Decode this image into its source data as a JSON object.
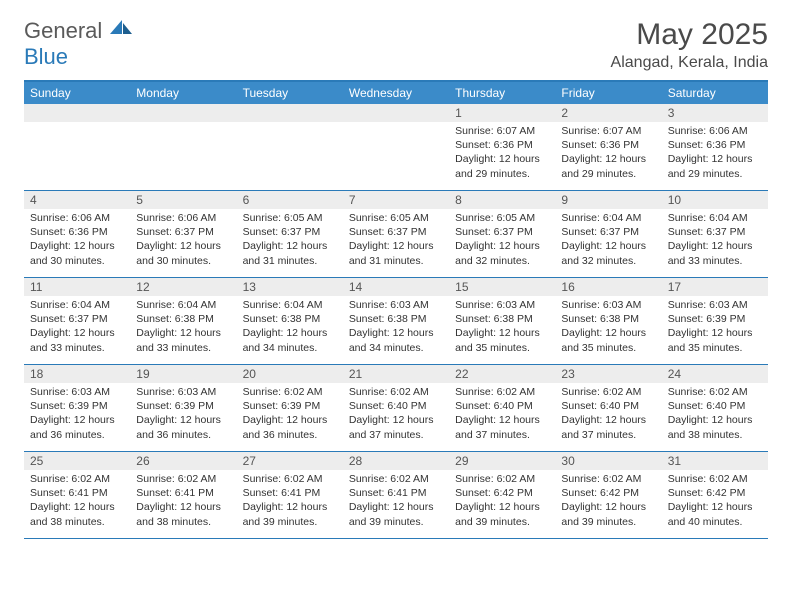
{
  "logo": {
    "text1": "General",
    "text2": "Blue"
  },
  "title": "May 2025",
  "location": "Alangad, Kerala, India",
  "colors": {
    "header_bg": "#3b8bc9",
    "header_border": "#2a7ab8",
    "daynum_bg": "#ededed",
    "text": "#333333"
  },
  "weekdays": [
    "Sunday",
    "Monday",
    "Tuesday",
    "Wednesday",
    "Thursday",
    "Friday",
    "Saturday"
  ],
  "weeks": [
    [
      null,
      null,
      null,
      null,
      {
        "n": "1",
        "sr": "6:07 AM",
        "ss": "6:36 PM",
        "dl": "12 hours and 29 minutes."
      },
      {
        "n": "2",
        "sr": "6:07 AM",
        "ss": "6:36 PM",
        "dl": "12 hours and 29 minutes."
      },
      {
        "n": "3",
        "sr": "6:06 AM",
        "ss": "6:36 PM",
        "dl": "12 hours and 29 minutes."
      }
    ],
    [
      {
        "n": "4",
        "sr": "6:06 AM",
        "ss": "6:36 PM",
        "dl": "12 hours and 30 minutes."
      },
      {
        "n": "5",
        "sr": "6:06 AM",
        "ss": "6:37 PM",
        "dl": "12 hours and 30 minutes."
      },
      {
        "n": "6",
        "sr": "6:05 AM",
        "ss": "6:37 PM",
        "dl": "12 hours and 31 minutes."
      },
      {
        "n": "7",
        "sr": "6:05 AM",
        "ss": "6:37 PM",
        "dl": "12 hours and 31 minutes."
      },
      {
        "n": "8",
        "sr": "6:05 AM",
        "ss": "6:37 PM",
        "dl": "12 hours and 32 minutes."
      },
      {
        "n": "9",
        "sr": "6:04 AM",
        "ss": "6:37 PM",
        "dl": "12 hours and 32 minutes."
      },
      {
        "n": "10",
        "sr": "6:04 AM",
        "ss": "6:37 PM",
        "dl": "12 hours and 33 minutes."
      }
    ],
    [
      {
        "n": "11",
        "sr": "6:04 AM",
        "ss": "6:37 PM",
        "dl": "12 hours and 33 minutes."
      },
      {
        "n": "12",
        "sr": "6:04 AM",
        "ss": "6:38 PM",
        "dl": "12 hours and 33 minutes."
      },
      {
        "n": "13",
        "sr": "6:04 AM",
        "ss": "6:38 PM",
        "dl": "12 hours and 34 minutes."
      },
      {
        "n": "14",
        "sr": "6:03 AM",
        "ss": "6:38 PM",
        "dl": "12 hours and 34 minutes."
      },
      {
        "n": "15",
        "sr": "6:03 AM",
        "ss": "6:38 PM",
        "dl": "12 hours and 35 minutes."
      },
      {
        "n": "16",
        "sr": "6:03 AM",
        "ss": "6:38 PM",
        "dl": "12 hours and 35 minutes."
      },
      {
        "n": "17",
        "sr": "6:03 AM",
        "ss": "6:39 PM",
        "dl": "12 hours and 35 minutes."
      }
    ],
    [
      {
        "n": "18",
        "sr": "6:03 AM",
        "ss": "6:39 PM",
        "dl": "12 hours and 36 minutes."
      },
      {
        "n": "19",
        "sr": "6:03 AM",
        "ss": "6:39 PM",
        "dl": "12 hours and 36 minutes."
      },
      {
        "n": "20",
        "sr": "6:02 AM",
        "ss": "6:39 PM",
        "dl": "12 hours and 36 minutes."
      },
      {
        "n": "21",
        "sr": "6:02 AM",
        "ss": "6:40 PM",
        "dl": "12 hours and 37 minutes."
      },
      {
        "n": "22",
        "sr": "6:02 AM",
        "ss": "6:40 PM",
        "dl": "12 hours and 37 minutes."
      },
      {
        "n": "23",
        "sr": "6:02 AM",
        "ss": "6:40 PM",
        "dl": "12 hours and 37 minutes."
      },
      {
        "n": "24",
        "sr": "6:02 AM",
        "ss": "6:40 PM",
        "dl": "12 hours and 38 minutes."
      }
    ],
    [
      {
        "n": "25",
        "sr": "6:02 AM",
        "ss": "6:41 PM",
        "dl": "12 hours and 38 minutes."
      },
      {
        "n": "26",
        "sr": "6:02 AM",
        "ss": "6:41 PM",
        "dl": "12 hours and 38 minutes."
      },
      {
        "n": "27",
        "sr": "6:02 AM",
        "ss": "6:41 PM",
        "dl": "12 hours and 39 minutes."
      },
      {
        "n": "28",
        "sr": "6:02 AM",
        "ss": "6:41 PM",
        "dl": "12 hours and 39 minutes."
      },
      {
        "n": "29",
        "sr": "6:02 AM",
        "ss": "6:42 PM",
        "dl": "12 hours and 39 minutes."
      },
      {
        "n": "30",
        "sr": "6:02 AM",
        "ss": "6:42 PM",
        "dl": "12 hours and 39 minutes."
      },
      {
        "n": "31",
        "sr": "6:02 AM",
        "ss": "6:42 PM",
        "dl": "12 hours and 40 minutes."
      }
    ]
  ],
  "labels": {
    "sunrise": "Sunrise:",
    "sunset": "Sunset:",
    "daylight": "Daylight:"
  }
}
